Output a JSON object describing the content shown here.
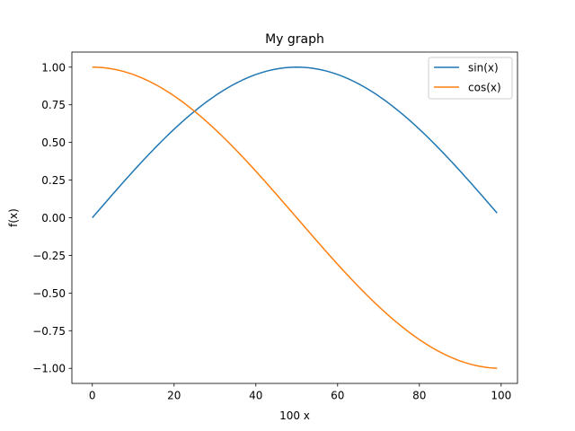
{
  "chart_data": {
    "type": "line",
    "title": "My graph",
    "xlabel": "100 x",
    "ylabel": "f(x)",
    "xlim": [
      -5,
      104
    ],
    "ylim": [
      -1.1,
      1.1
    ],
    "x_ticks": [
      0,
      20,
      40,
      60,
      80,
      100
    ],
    "x_tick_labels": [
      "0",
      "20",
      "40",
      "60",
      "80",
      "100"
    ],
    "y_ticks": [
      -1.0,
      -0.75,
      -0.5,
      -0.25,
      0.0,
      0.25,
      0.5,
      0.75,
      1.0
    ],
    "y_tick_labels": [
      "−1.00",
      "−0.75",
      "−0.50",
      "−0.25",
      "0.00",
      "0.25",
      "0.50",
      "0.75",
      "1.00"
    ],
    "x": [
      0,
      1,
      2,
      3,
      4,
      5,
      6,
      7,
      8,
      9,
      10,
      11,
      12,
      13,
      14,
      15,
      16,
      17,
      18,
      19,
      20,
      21,
      22,
      23,
      24,
      25,
      26,
      27,
      28,
      29,
      30,
      31,
      32,
      33,
      34,
      35,
      36,
      37,
      38,
      39,
      40,
      41,
      42,
      43,
      44,
      45,
      46,
      47,
      48,
      49,
      50,
      51,
      52,
      53,
      54,
      55,
      56,
      57,
      58,
      59,
      60,
      61,
      62,
      63,
      64,
      65,
      66,
      67,
      68,
      69,
      70,
      71,
      72,
      73,
      74,
      75,
      76,
      77,
      78,
      79,
      80,
      81,
      82,
      83,
      84,
      85,
      86,
      87,
      88,
      89,
      90,
      91,
      92,
      93,
      94,
      95,
      96,
      97,
      98,
      99
    ],
    "series": [
      {
        "name": "sin(x)",
        "color": "#1f77b4",
        "values": [
          0.0,
          0.0314,
          0.0628,
          0.0941,
          0.1253,
          0.1564,
          0.1874,
          0.2181,
          0.2487,
          0.279,
          0.309,
          0.3387,
          0.3681,
          0.3971,
          0.4258,
          0.454,
          0.4818,
          0.509,
          0.5358,
          0.5621,
          0.5878,
          0.6129,
          0.6374,
          0.6613,
          0.6845,
          0.7071,
          0.729,
          0.7501,
          0.7705,
          0.79,
          0.809,
          0.8271,
          0.8443,
          0.8607,
          0.8763,
          0.891,
          0.9048,
          0.9178,
          0.9298,
          0.9409,
          0.9511,
          0.9603,
          0.9686,
          0.9759,
          0.9823,
          0.9877,
          0.9921,
          0.9956,
          0.998,
          0.9995,
          1.0,
          0.9995,
          0.998,
          0.9956,
          0.9921,
          0.9877,
          0.9823,
          0.9759,
          0.9686,
          0.9603,
          0.9511,
          0.9409,
          0.9298,
          0.9178,
          0.9048,
          0.891,
          0.8763,
          0.8607,
          0.8443,
          0.8271,
          0.809,
          0.79,
          0.7705,
          0.7501,
          0.729,
          0.7071,
          0.6845,
          0.6613,
          0.6374,
          0.6129,
          0.5878,
          0.5621,
          0.5358,
          0.509,
          0.4818,
          0.454,
          0.4258,
          0.3971,
          0.3681,
          0.3387,
          0.309,
          0.279,
          0.2487,
          0.2181,
          0.1874,
          0.1564,
          0.1253,
          0.0941,
          0.0628,
          0.0314
        ]
      },
      {
        "name": "cos(x)",
        "color": "#ff7f0e",
        "values": [
          1.0,
          0.9995,
          0.998,
          0.9956,
          0.9921,
          0.9877,
          0.9823,
          0.9759,
          0.9686,
          0.9603,
          0.9511,
          0.9409,
          0.9298,
          0.9178,
          0.9048,
          0.891,
          0.8763,
          0.8607,
          0.8443,
          0.8271,
          0.809,
          0.79,
          0.7705,
          0.7501,
          0.729,
          0.7071,
          0.6845,
          0.6613,
          0.6374,
          0.6129,
          0.5878,
          0.5621,
          0.5358,
          0.509,
          0.4818,
          0.454,
          0.4258,
          0.3971,
          0.3681,
          0.3387,
          0.309,
          0.279,
          0.2487,
          0.2181,
          0.1874,
          0.1564,
          0.1253,
          0.0941,
          0.0628,
          0.0314,
          0.0,
          -0.0314,
          -0.0628,
          -0.0941,
          -0.1253,
          -0.1564,
          -0.1874,
          -0.2181,
          -0.2487,
          -0.279,
          -0.309,
          -0.3387,
          -0.3681,
          -0.3971,
          -0.4258,
          -0.454,
          -0.4818,
          -0.509,
          -0.5358,
          -0.5621,
          -0.5878,
          -0.6129,
          -0.6374,
          -0.6613,
          -0.6845,
          -0.7071,
          -0.729,
          -0.7501,
          -0.7705,
          -0.79,
          -0.809,
          -0.8271,
          -0.8443,
          -0.8607,
          -0.8763,
          -0.891,
          -0.9048,
          -0.9178,
          -0.9298,
          -0.9409,
          -0.9511,
          -0.9603,
          -0.9686,
          -0.9759,
          -0.9823,
          -0.9877,
          -0.9921,
          -0.9956,
          -0.998,
          -0.9995
        ]
      }
    ],
    "legend": {
      "position": "top-right"
    },
    "grid": false
  }
}
